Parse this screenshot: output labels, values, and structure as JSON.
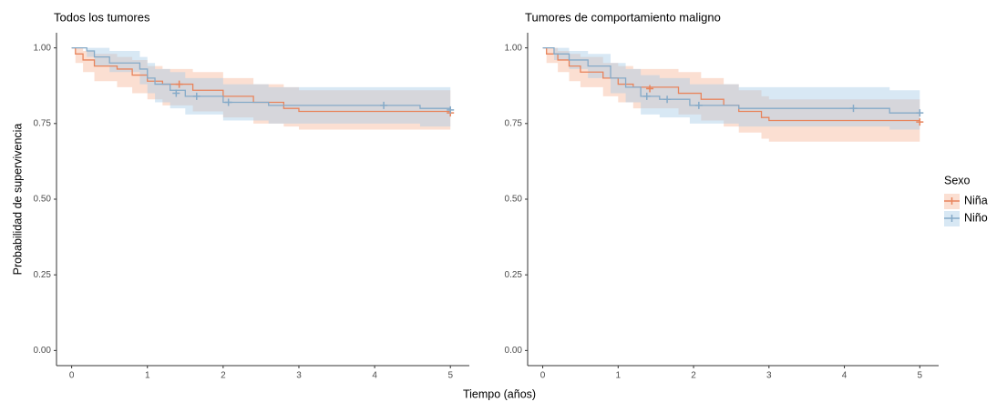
{
  "x_label": "Tiempo (años)",
  "y_label": "Probabilidad de supervivencia",
  "legend_title": "Sexo",
  "chart_data": [
    {
      "type": "step",
      "title": "Todos los tumores",
      "xlim": [
        -0.2,
        5.25
      ],
      "ylim": [
        -0.05,
        1.05
      ],
      "xticks": [
        0,
        1,
        2,
        3,
        4,
        5
      ],
      "yticks": [
        {
          "value": 0,
          "label": "0.00"
        },
        {
          "value": 0.25,
          "label": "0.25"
        },
        {
          "value": 0.5,
          "label": "0.50"
        },
        {
          "value": 0.75,
          "label": "0.75"
        },
        {
          "value": 1,
          "label": "1.00"
        }
      ],
      "series": [
        {
          "name": "Niña",
          "color": "#e8845c",
          "band_color": "#f6b89c",
          "x": [
            0,
            0.05,
            0.15,
            0.3,
            0.6,
            0.8,
            1.0,
            1.2,
            1.6,
            2.0,
            2.4,
            2.8,
            3.0,
            5.0
          ],
          "values": [
            1.0,
            0.98,
            0.96,
            0.94,
            0.93,
            0.91,
            0.89,
            0.88,
            0.86,
            0.84,
            0.82,
            0.8,
            0.79,
            0.785
          ],
          "lower": [
            1.0,
            0.95,
            0.92,
            0.89,
            0.87,
            0.85,
            0.83,
            0.81,
            0.79,
            0.77,
            0.75,
            0.74,
            0.73,
            0.72
          ],
          "upper": [
            1.0,
            1.0,
            0.99,
            0.98,
            0.97,
            0.96,
            0.94,
            0.93,
            0.92,
            0.9,
            0.88,
            0.87,
            0.86,
            0.86
          ],
          "censor_x": [
            1.42,
            5.0
          ],
          "censor_values": [
            0.88,
            0.785
          ]
        },
        {
          "name": "Niño",
          "color": "#85aac8",
          "band_color": "#a9cbe6",
          "x": [
            0,
            0.2,
            0.3,
            0.5,
            0.9,
            1.0,
            1.1,
            1.3,
            1.5,
            2.0,
            2.6,
            4.6,
            5.0
          ],
          "values": [
            1.0,
            0.99,
            0.97,
            0.95,
            0.93,
            0.9,
            0.88,
            0.86,
            0.84,
            0.82,
            0.81,
            0.8,
            0.795
          ],
          "lower": [
            1.0,
            0.97,
            0.94,
            0.92,
            0.88,
            0.85,
            0.82,
            0.8,
            0.78,
            0.76,
            0.75,
            0.74,
            0.73
          ],
          "upper": [
            1.0,
            1.0,
            1.0,
            0.99,
            0.97,
            0.95,
            0.93,
            0.92,
            0.9,
            0.88,
            0.87,
            0.87,
            0.86
          ],
          "censor_x": [
            1.38,
            1.65,
            2.07,
            4.12,
            5.0
          ],
          "censor_values": [
            0.85,
            0.84,
            0.82,
            0.81,
            0.795
          ]
        }
      ]
    },
    {
      "type": "step",
      "title": "Tumores de comportamiento maligno",
      "xlim": [
        -0.2,
        5.25
      ],
      "ylim": [
        -0.05,
        1.05
      ],
      "xticks": [
        0,
        1,
        2,
        3,
        4,
        5
      ],
      "yticks": [
        {
          "value": 0,
          "label": "0.00"
        },
        {
          "value": 0.25,
          "label": "0.25"
        },
        {
          "value": 0.5,
          "label": "0.50"
        },
        {
          "value": 0.75,
          "label": "0.75"
        },
        {
          "value": 1,
          "label": "1.00"
        }
      ],
      "series": [
        {
          "name": "Niña",
          "color": "#e8845c",
          "band_color": "#f6b89c",
          "x": [
            0,
            0.05,
            0.2,
            0.35,
            0.5,
            0.8,
            1.0,
            1.2,
            1.8,
            2.1,
            2.4,
            2.6,
            2.9,
            3.0,
            5.0
          ],
          "values": [
            1.0,
            0.98,
            0.96,
            0.94,
            0.92,
            0.9,
            0.88,
            0.87,
            0.85,
            0.83,
            0.81,
            0.79,
            0.77,
            0.76,
            0.755
          ],
          "lower": [
            1.0,
            0.95,
            0.92,
            0.89,
            0.87,
            0.84,
            0.82,
            0.8,
            0.78,
            0.76,
            0.74,
            0.72,
            0.7,
            0.69,
            0.69
          ],
          "upper": [
            1.0,
            1.0,
            0.99,
            0.98,
            0.97,
            0.95,
            0.94,
            0.93,
            0.92,
            0.9,
            0.88,
            0.86,
            0.84,
            0.83,
            0.83
          ],
          "censor_x": [
            1.42,
            5.0
          ],
          "censor_values": [
            0.865,
            0.755
          ]
        },
        {
          "name": "Niño",
          "color": "#85aac8",
          "band_color": "#a9cbe6",
          "x": [
            0,
            0.15,
            0.35,
            0.6,
            0.9,
            1.1,
            1.3,
            1.55,
            1.95,
            2.6,
            4.6,
            5.0
          ],
          "values": [
            1.0,
            0.98,
            0.96,
            0.94,
            0.9,
            0.87,
            0.84,
            0.83,
            0.81,
            0.8,
            0.785,
            0.785
          ],
          "lower": [
            1.0,
            0.96,
            0.93,
            0.9,
            0.85,
            0.82,
            0.78,
            0.77,
            0.75,
            0.74,
            0.73,
            0.72
          ],
          "upper": [
            1.0,
            1.0,
            0.99,
            0.98,
            0.95,
            0.93,
            0.91,
            0.9,
            0.88,
            0.87,
            0.86,
            0.86
          ],
          "censor_x": [
            1.38,
            1.65,
            2.07,
            4.12,
            5.0
          ],
          "censor_values": [
            0.84,
            0.83,
            0.81,
            0.8,
            0.785
          ]
        }
      ]
    }
  ]
}
